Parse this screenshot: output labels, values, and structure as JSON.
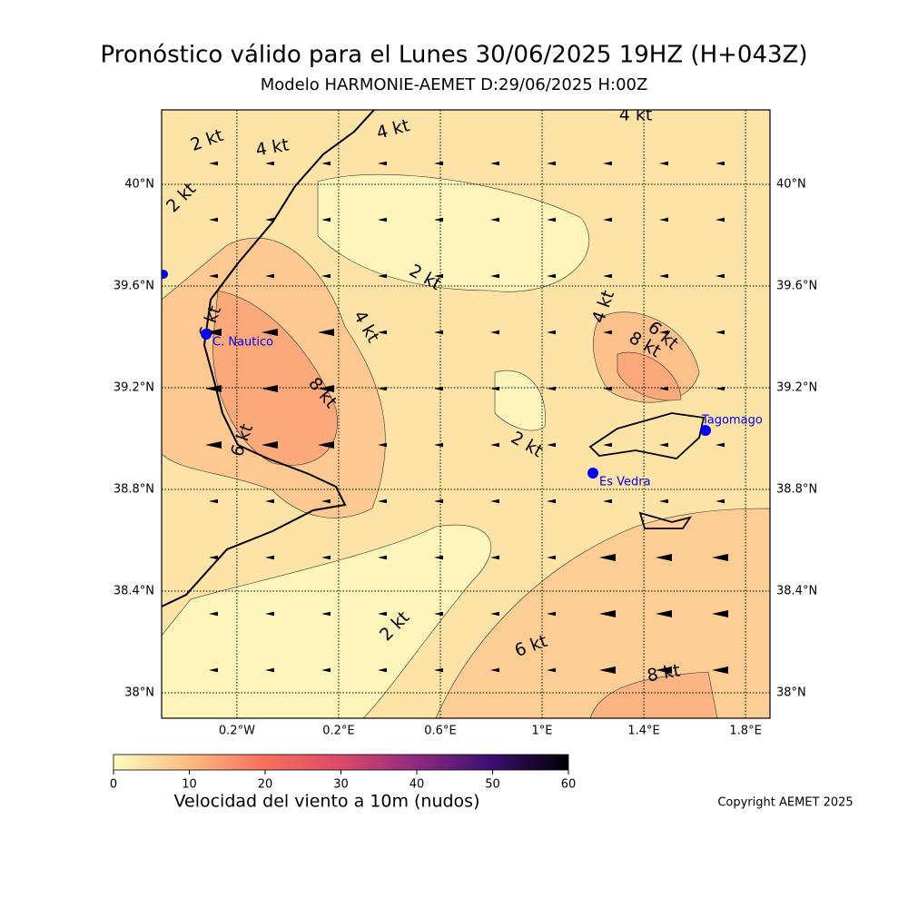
{
  "header": {
    "title": "Pronóstico válido para el Lunes 30/06/2025 19HZ (H+043Z)",
    "subtitle": "Modelo HARMONIE-AEMET D:29/06/2025 H:00Z"
  },
  "map": {
    "xlim": [
      -0.496,
      1.896
    ],
    "ylim": [
      37.9,
      40.293
    ],
    "xticks": [
      {
        "value": -0.2,
        "label": "0.2°W"
      },
      {
        "value": 0.2,
        "label": "0.2°E"
      },
      {
        "value": 0.6,
        "label": "0.6°E"
      },
      {
        "value": 1,
        "label": "1°E"
      },
      {
        "value": 1.4,
        "label": "1.4°E"
      },
      {
        "value": 1.8,
        "label": "1.8°E"
      }
    ],
    "yticks": [
      {
        "value": 38,
        "label": "38°N"
      },
      {
        "value": 38.4,
        "label": "38.4°N"
      },
      {
        "value": 38.8,
        "label": "38.8°N"
      },
      {
        "value": 39.2,
        "label": "39.2°N"
      },
      {
        "value": 39.6,
        "label": "39.6°N"
      },
      {
        "value": 40,
        "label": "40°N"
      }
    ],
    "contour_labels": [
      "2 kt",
      "4 kt",
      "4 kt",
      "4 kt",
      "2 kt",
      "2 kt",
      "4 kt",
      "8 kt",
      "6 kt",
      "4 kt",
      "6 kt",
      "8 kt",
      "2 kt",
      "6 kt",
      "2 kt",
      "6 kt",
      "8 kt"
    ],
    "places": [
      "C. Nautico",
      "Tagomago",
      "Es Vedra"
    ]
  },
  "colorbar": {
    "lim": [
      0,
      60
    ],
    "ticks": [
      0,
      10,
      20,
      30,
      40,
      50,
      60
    ],
    "label": "Velocidad del viento a 10m (nudos)"
  },
  "footer": {
    "copyright": "Copyright AEMET 2025"
  }
}
